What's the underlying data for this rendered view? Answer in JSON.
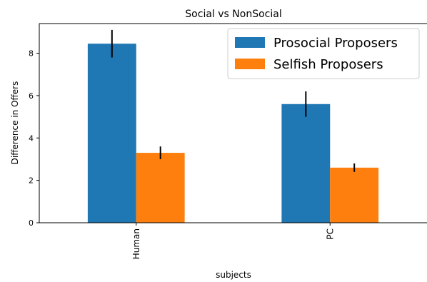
{
  "chart_data": {
    "type": "bar",
    "title": "Social vs NonSocial",
    "xlabel": "subjects",
    "ylabel": "Difference in Offers",
    "categories": [
      "Human",
      "PC"
    ],
    "series": [
      {
        "name": "Prosocial Proposers",
        "color": "#1f77b4",
        "values": [
          8.45,
          5.6
        ],
        "errors": [
          0.65,
          0.6
        ]
      },
      {
        "name": "Selfish Proposers",
        "color": "#ff7f0e",
        "values": [
          3.3,
          2.6
        ],
        "errors": [
          0.3,
          0.2
        ]
      }
    ],
    "ylim": [
      0,
      9.4
    ],
    "yticks": [
      0,
      2,
      4,
      6,
      8
    ],
    "grid": false,
    "legend_position": "top-right",
    "xtick_rotation": 90
  }
}
